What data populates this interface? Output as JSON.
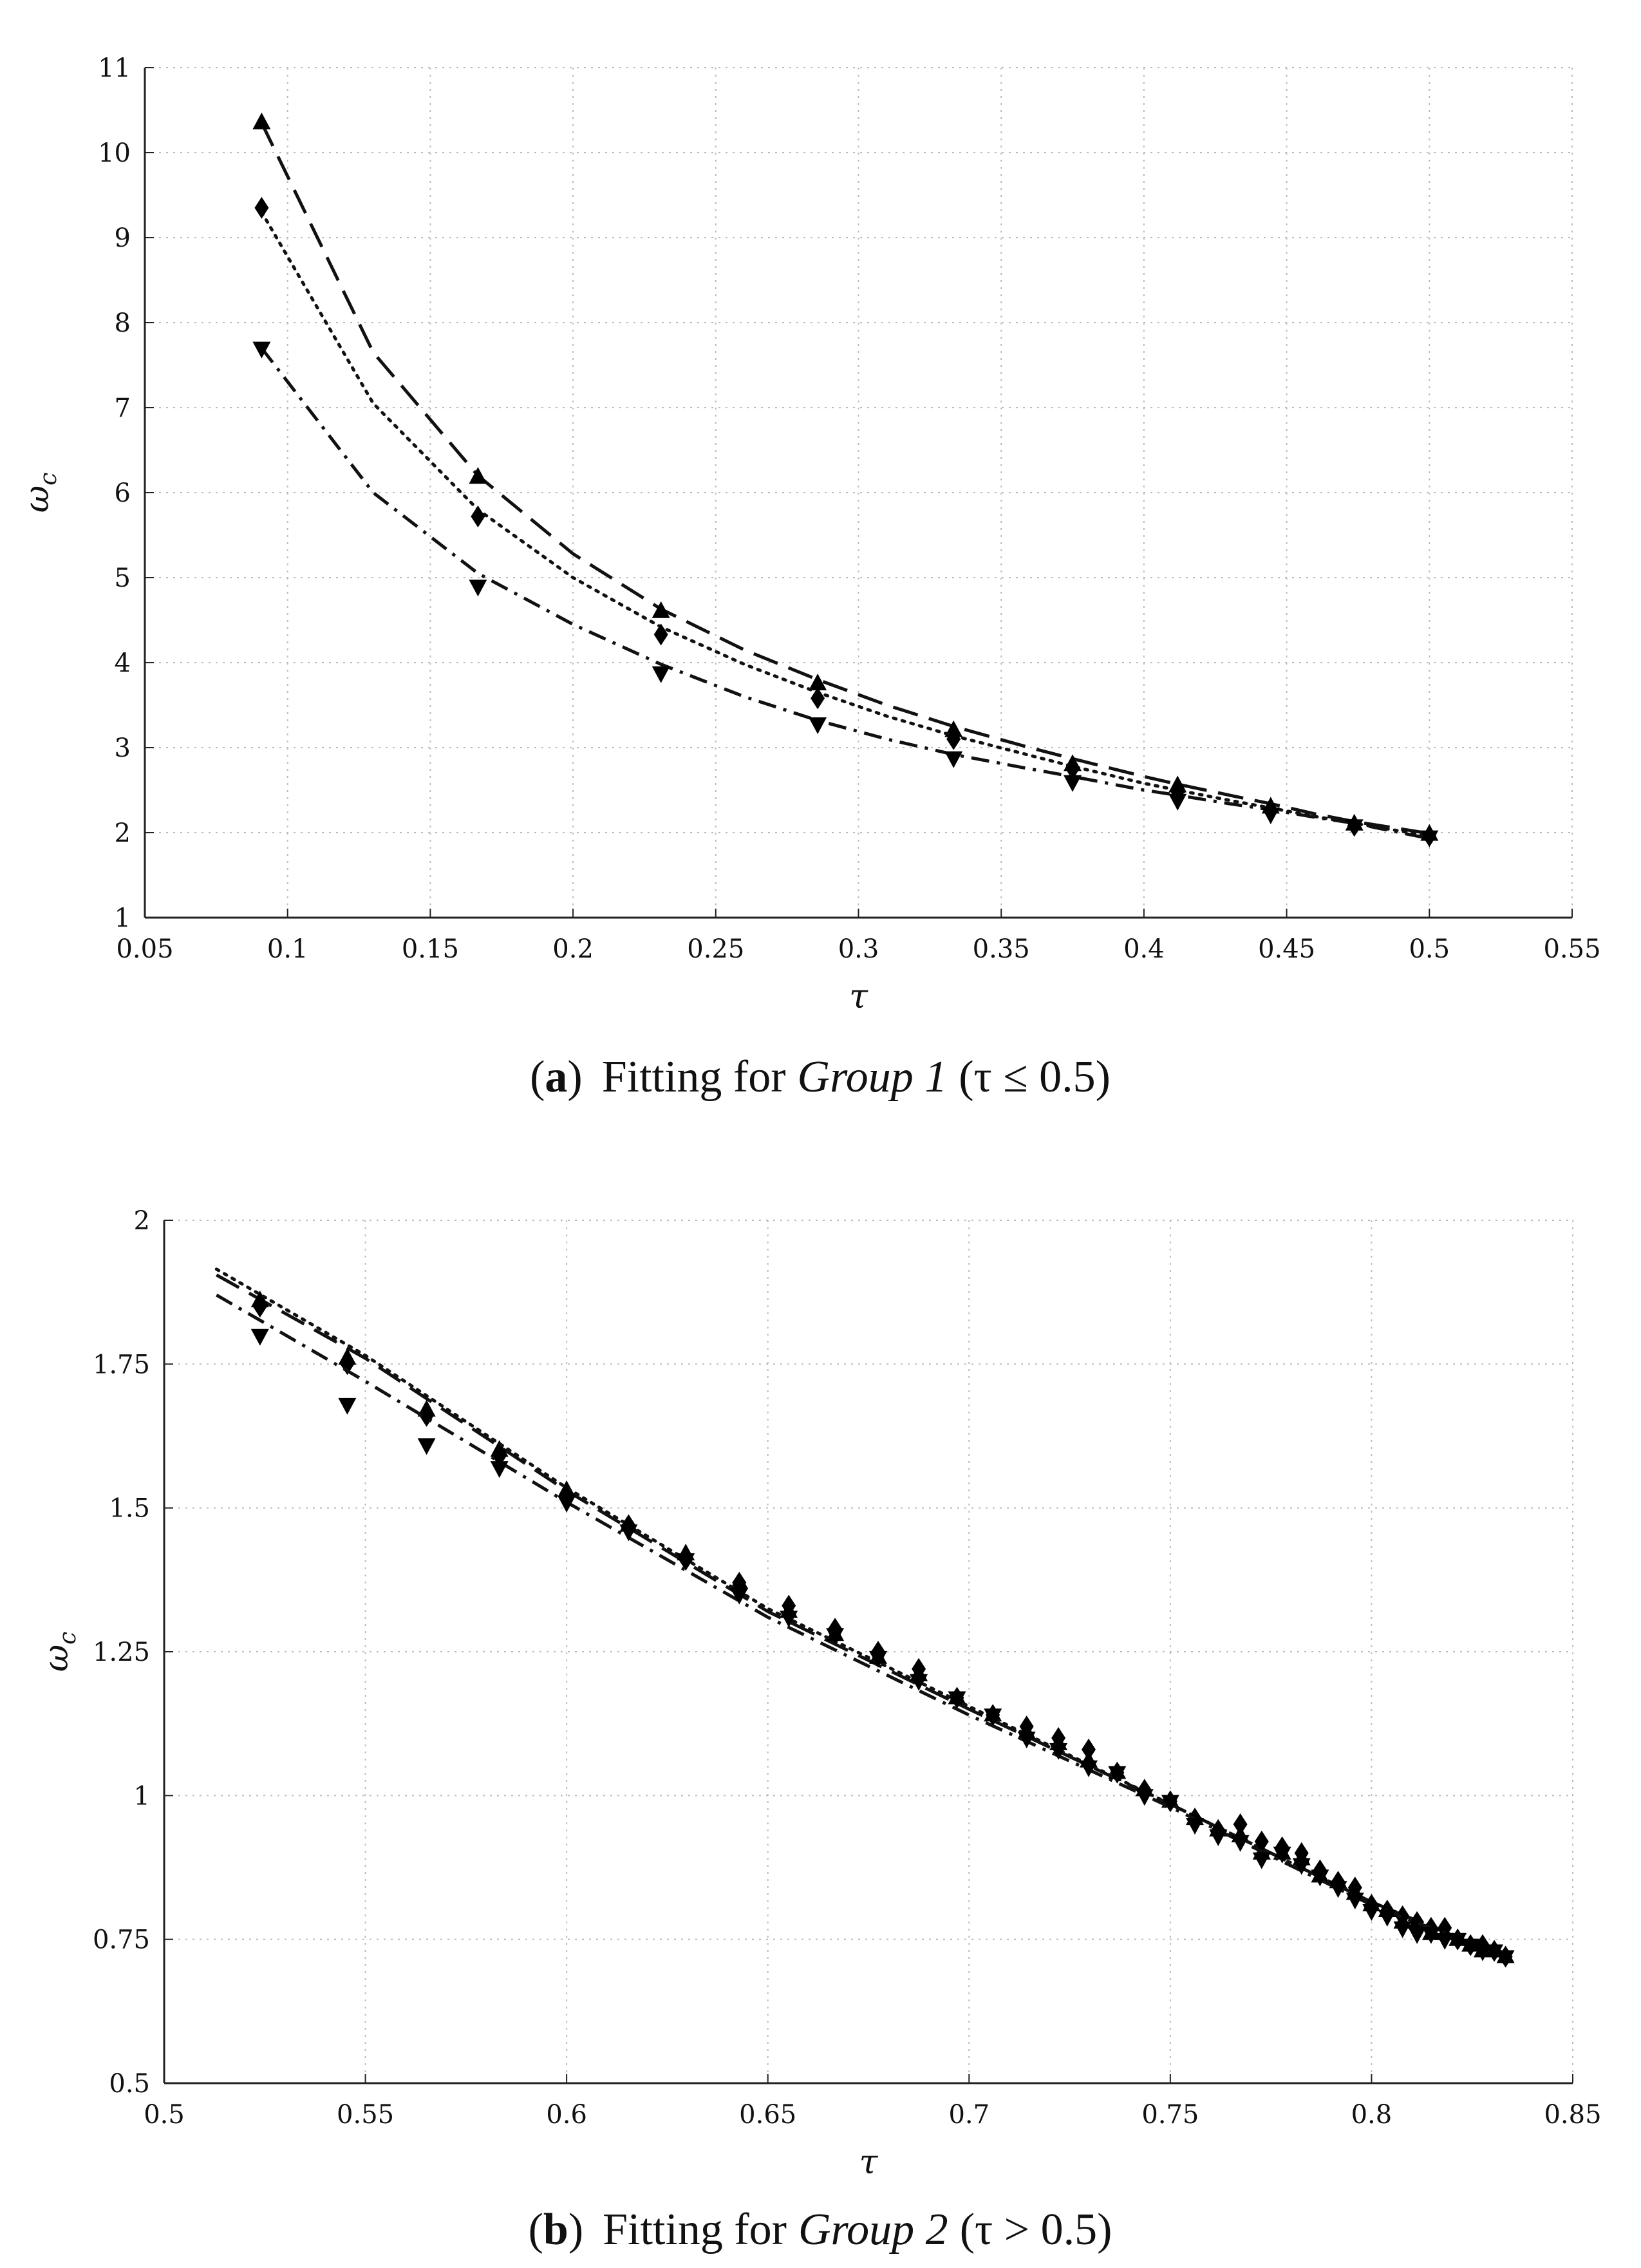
{
  "chart_data": [
    {
      "type": "line",
      "panel_label": "a",
      "caption_prefix": "Fitting for",
      "caption_group": "Group 1",
      "caption_condition": "(τ ≤ 0.5)",
      "xlabel": "τ",
      "ylabel": "ω",
      "ylabel_sub": "c",
      "xlim": [
        0.05,
        0.55
      ],
      "ylim": [
        1,
        11
      ],
      "xticks": [
        "0.05",
        "0.1",
        "0.15",
        "0.2",
        "0.25",
        "0.3",
        "0.35",
        "0.4",
        "0.45",
        "0.5",
        "0.55"
      ],
      "yticks": [
        "1",
        "2",
        "3",
        "4",
        "5",
        "6",
        "7",
        "8",
        "9",
        "10",
        "11"
      ],
      "grid": true,
      "series": [
        {
          "name": "up-triangle",
          "marker": "triangle-up",
          "line": "dashed",
          "x": [
            0.0909,
            0.1667,
            0.2308,
            0.2857,
            0.3333,
            0.375,
            0.4118,
            0.4444,
            0.4737,
            0.5
          ],
          "values": [
            10.35,
            6.18,
            4.6,
            3.75,
            3.2,
            2.8,
            2.55,
            2.3,
            2.1,
            1.98
          ],
          "fit_x": [
            0.0909,
            0.13,
            0.1667,
            0.2,
            0.2308,
            0.26,
            0.2857,
            0.31,
            0.3333,
            0.36,
            0.375,
            0.4,
            0.4118,
            0.43,
            0.4444,
            0.46,
            0.4737,
            0.5
          ],
          "fit_y": [
            10.35,
            7.65,
            6.2,
            5.28,
            4.63,
            4.15,
            3.8,
            3.5,
            3.25,
            3.0,
            2.87,
            2.66,
            2.57,
            2.44,
            2.34,
            2.22,
            2.13,
            1.99
          ]
        },
        {
          "name": "diamond",
          "marker": "diamond",
          "line": "dotted",
          "x": [
            0.0909,
            0.1667,
            0.2308,
            0.2857,
            0.3333,
            0.375,
            0.4118,
            0.4444,
            0.4737,
            0.5
          ],
          "values": [
            9.35,
            5.72,
            4.33,
            3.58,
            3.1,
            2.75,
            2.48,
            2.25,
            2.08,
            1.96
          ],
          "fit_x": [
            0.0909,
            0.13,
            0.1667,
            0.2,
            0.2308,
            0.26,
            0.2857,
            0.31,
            0.3333,
            0.36,
            0.375,
            0.4,
            0.4118,
            0.43,
            0.4444,
            0.46,
            0.4737,
            0.5
          ],
          "fit_y": [
            9.3,
            7.05,
            5.8,
            5.0,
            4.42,
            3.98,
            3.65,
            3.37,
            3.14,
            2.91,
            2.78,
            2.58,
            2.5,
            2.38,
            2.29,
            2.19,
            2.11,
            1.96
          ]
        },
        {
          "name": "down-triangle",
          "marker": "triangle-down",
          "line": "dashdot",
          "x": [
            0.0909,
            0.1667,
            0.2308,
            0.2857,
            0.3333,
            0.375,
            0.4118,
            0.4444,
            0.4737,
            0.5
          ],
          "values": [
            7.7,
            4.9,
            3.88,
            3.28,
            2.88,
            2.6,
            2.38,
            2.22,
            2.08,
            1.95
          ],
          "fit_x": [
            0.0909,
            0.13,
            0.1667,
            0.2,
            0.2308,
            0.26,
            0.2857,
            0.31,
            0.3333,
            0.36,
            0.375,
            0.4,
            0.4118,
            0.43,
            0.4444,
            0.46,
            0.4737,
            0.5
          ],
          "fit_y": [
            7.7,
            6.0,
            5.05,
            4.45,
            3.98,
            3.6,
            3.32,
            3.1,
            2.92,
            2.75,
            2.66,
            2.5,
            2.44,
            2.34,
            2.27,
            2.18,
            2.11,
            1.93
          ]
        }
      ]
    },
    {
      "type": "line",
      "panel_label": "b",
      "caption_prefix": "Fitting for",
      "caption_group": "Group 2",
      "caption_condition": "(τ > 0.5)",
      "xlabel": "τ",
      "ylabel": "ω",
      "ylabel_sub": "c",
      "xlim": [
        0.5,
        0.85
      ],
      "ylim": [
        0.5,
        2
      ],
      "xticks": [
        "0.5",
        "0.55",
        "0.6",
        "0.65",
        "0.7",
        "0.75",
        "0.8",
        "0.85"
      ],
      "yticks": [
        "0.5",
        "0.75",
        "1",
        "1.25",
        "1.5",
        "1.75",
        "2"
      ],
      "grid": true,
      "series": [
        {
          "name": "up-triangle",
          "marker": "triangle-up",
          "line": "dashed",
          "x": [
            0.5238,
            0.5455,
            0.5652,
            0.5833,
            0.6,
            0.6154,
            0.6296,
            0.6429,
            0.6552,
            0.6667,
            0.6774,
            0.6875,
            0.697,
            0.7059,
            0.7143,
            0.7222,
            0.7297,
            0.7368,
            0.7436,
            0.75,
            0.7561,
            0.7619,
            0.7674,
            0.7727,
            0.7778,
            0.7826,
            0.7872,
            0.7917,
            0.7959,
            0.8,
            0.8039,
            0.8077,
            0.8113,
            0.8148,
            0.8182,
            0.8214,
            0.8246,
            0.8276,
            0.8305,
            0.8333
          ],
          "values": [
            1.86,
            1.76,
            1.67,
            1.6,
            1.53,
            1.47,
            1.42,
            1.37,
            1.32,
            1.28,
            1.24,
            1.21,
            1.17,
            1.14,
            1.11,
            1.09,
            1.06,
            1.04,
            1.01,
            0.99,
            0.96,
            0.94,
            0.93,
            0.9,
            0.9,
            0.89,
            0.86,
            0.85,
            0.83,
            0.81,
            0.8,
            0.78,
            0.78,
            0.76,
            0.76,
            0.75,
            0.74,
            0.73,
            0.73,
            0.72
          ],
          "fit_x": [
            0.513,
            0.55,
            0.6,
            0.65,
            0.7,
            0.75,
            0.8,
            0.833
          ],
          "fit_y": [
            1.905,
            1.76,
            1.53,
            1.32,
            1.15,
            0.985,
            0.815,
            0.72
          ]
        },
        {
          "name": "diamond",
          "marker": "diamond",
          "line": "dotted",
          "x": [
            0.5238,
            0.5455,
            0.5652,
            0.5833,
            0.6,
            0.6154,
            0.6296,
            0.6429,
            0.6552,
            0.6667,
            0.6774,
            0.6875,
            0.697,
            0.7059,
            0.7143,
            0.7222,
            0.7297,
            0.7368,
            0.7436,
            0.75,
            0.7561,
            0.7619,
            0.7674,
            0.7727,
            0.7778,
            0.7826,
            0.7872,
            0.7917,
            0.7959,
            0.8,
            0.8039,
            0.8077,
            0.8113,
            0.8148,
            0.8182,
            0.8214,
            0.8246,
            0.8276,
            0.8305,
            0.8333
          ],
          "values": [
            1.85,
            1.75,
            1.66,
            1.59,
            1.52,
            1.47,
            1.41,
            1.37,
            1.33,
            1.29,
            1.25,
            1.22,
            1.17,
            1.14,
            1.12,
            1.1,
            1.08,
            1.04,
            1.01,
            0.99,
            0.96,
            0.94,
            0.95,
            0.92,
            0.91,
            0.9,
            0.87,
            0.85,
            0.84,
            0.81,
            0.8,
            0.79,
            0.78,
            0.77,
            0.77,
            0.75,
            0.74,
            0.74,
            0.73,
            0.72
          ],
          "fit_x": [
            0.513,
            0.55,
            0.6,
            0.65,
            0.7,
            0.75,
            0.8,
            0.833
          ],
          "fit_y": [
            1.915,
            1.765,
            1.535,
            1.325,
            1.155,
            0.985,
            0.815,
            0.72
          ]
        },
        {
          "name": "down-triangle",
          "marker": "triangle-down",
          "line": "dashdot",
          "x": [
            0.5238,
            0.5455,
            0.5652,
            0.5833,
            0.6,
            0.6154,
            0.6296,
            0.6429,
            0.6552,
            0.6667,
            0.6774,
            0.6875,
            0.697,
            0.7059,
            0.7143,
            0.7222,
            0.7297,
            0.7368,
            0.7436,
            0.75,
            0.7561,
            0.7619,
            0.7674,
            0.7727,
            0.7778,
            0.7826,
            0.7872,
            0.7917,
            0.7959,
            0.8,
            0.8039,
            0.8077,
            0.8113,
            0.8148,
            0.8182,
            0.8214,
            0.8246,
            0.8276,
            0.8305,
            0.8333
          ],
          "values": [
            1.8,
            1.68,
            1.61,
            1.57,
            1.51,
            1.46,
            1.41,
            1.35,
            1.31,
            1.28,
            1.24,
            1.2,
            1.17,
            1.14,
            1.1,
            1.08,
            1.05,
            1.04,
            1.0,
            0.99,
            0.95,
            0.93,
            0.92,
            0.89,
            0.9,
            0.88,
            0.86,
            0.84,
            0.82,
            0.8,
            0.79,
            0.77,
            0.76,
            0.76,
            0.75,
            0.75,
            0.74,
            0.73,
            0.73,
            0.72
          ],
          "fit_x": [
            0.513,
            0.55,
            0.6,
            0.65,
            0.7,
            0.75,
            0.8,
            0.833
          ],
          "fit_y": [
            1.87,
            1.72,
            1.51,
            1.31,
            1.14,
            0.98,
            0.81,
            0.72
          ]
        }
      ]
    }
  ]
}
